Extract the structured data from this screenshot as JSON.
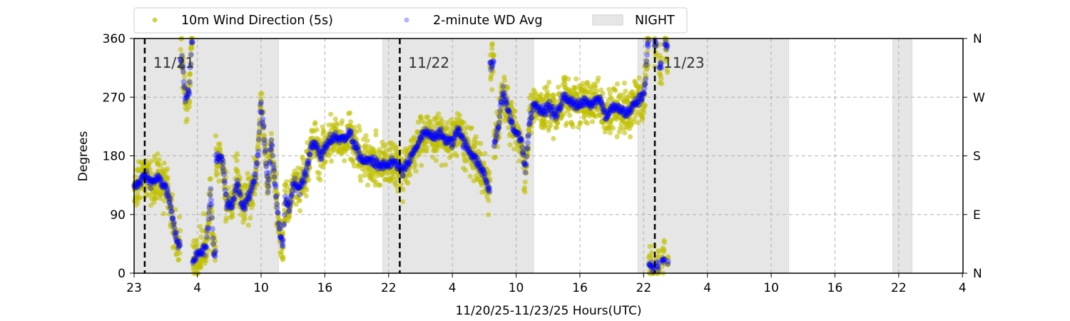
{
  "chart_data": {
    "type": "scatter",
    "xlabel": "11/20/25-11/23/25  Hours(UTC)",
    "ylabel": "Degrees",
    "xlim": [
      0,
      78
    ],
    "ylim": [
      0,
      360
    ],
    "x_units": "hours since axis start",
    "x_ticks": [
      0,
      5.95,
      11.95,
      17.95,
      23.95,
      29.95,
      35.95,
      41.95,
      47.95,
      53.95,
      59.95,
      65.95,
      71.95,
      77.95
    ],
    "x_tick_labels": [
      "23",
      "4",
      "10",
      "16",
      "22",
      "4",
      "10",
      "16",
      "22",
      "4",
      "10",
      "16",
      "22",
      "4"
    ],
    "y_ticks": [
      0,
      90,
      180,
      270,
      360
    ],
    "y_tick_labels": [
      "0",
      "90",
      "180",
      "270",
      "360"
    ],
    "y2_tick_labels": [
      "N",
      "E",
      "S",
      "W",
      "N"
    ],
    "grid": true,
    "legend": {
      "placement": "top-outside",
      "entries": [
        "10m Wind Direction (5s)",
        "2-minute WD Avg",
        "NIGHT"
      ]
    },
    "night_spans": [
      [
        0,
        13.6
      ],
      [
        23.4,
        37.6
      ],
      [
        47.4,
        61.6
      ],
      [
        71.4,
        73.2
      ]
    ],
    "day_markers": [
      {
        "x": 1.0,
        "label": "11/21"
      },
      {
        "x": 25.0,
        "label": "11/22"
      },
      {
        "x": 49.0,
        "label": "11/23"
      }
    ],
    "series": [
      {
        "name": "10m Wind Direction (5s)",
        "color": "#bfbf00",
        "spread_deg": 22
      },
      {
        "name": "2-minute WD Avg",
        "color": "#0000ff",
        "x": [
          0,
          0.5,
          1.0,
          1.6,
          2.3,
          3.0,
          3.5,
          3.9,
          4.2,
          4.5,
          4.8,
          5.2,
          5.4,
          5.6,
          6.2,
          6.8,
          7.2,
          7.5,
          7.9,
          8.3,
          8.7,
          9.2,
          9.7,
          10.2,
          10.9,
          11.4,
          11.7,
          11.9,
          12.2,
          12.6,
          12.9,
          13.2,
          13.7,
          14.0,
          14.2,
          14.6,
          15.0,
          15.6,
          16.1,
          16.6,
          17.0,
          17.6,
          18.1,
          18.8,
          19.5,
          20.3,
          20.9,
          21.6,
          22.3,
          22.9,
          24.0,
          24.6,
          25.3,
          26.0,
          26.6,
          27.3,
          28.0,
          28.7,
          29.3,
          30.0,
          30.5,
          31.0,
          31.7,
          32.3,
          33.0,
          33.3,
          33.7,
          34.0,
          34.4,
          34.7,
          35.2,
          35.7,
          36.4,
          36.8,
          37.2,
          37.6,
          38.4,
          39.1,
          39.7,
          40.4,
          41.1,
          41.7,
          42.4,
          43.1,
          43.8,
          44.4,
          45.1,
          45.8,
          46.4,
          47.1,
          47.8,
          48.1,
          48.3,
          48.6,
          48.9,
          49.0,
          49.3,
          49.5,
          49.8,
          50.1,
          50.3
        ],
        "y": [
          130,
          140,
          150,
          140,
          145,
          130,
          100,
          60,
          40,
          330,
          270,
          280,
          350,
          20,
          30,
          40,
          130,
          30,
          180,
          175,
          110,
          100,
          140,
          100,
          120,
          150,
          190,
          260,
          220,
          130,
          200,
          150,
          60,
          40,
          110,
          100,
          140,
          130,
          150,
          190,
          200,
          180,
          195,
          210,
          205,
          215,
          190,
          170,
          175,
          165,
          165,
          170,
          155,
          175,
          195,
          215,
          210,
          215,
          205,
          200,
          225,
          200,
          185,
          170,
          150,
          130,
          320,
          200,
          240,
          280,
          250,
          220,
          205,
          160,
          230,
          260,
          250,
          255,
          240,
          270,
          265,
          255,
          265,
          260,
          270,
          240,
          255,
          250,
          245,
          260,
          270,
          290,
          350,
          10,
          5,
          355,
          10,
          320,
          20,
          350,
          15
        ]
      }
    ]
  }
}
